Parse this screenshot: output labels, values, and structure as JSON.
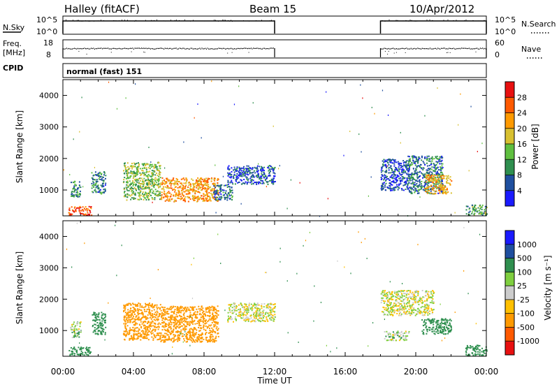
{
  "header": {
    "station": "Halley (fitACF)",
    "beam": "Beam 15",
    "date": "10/Apr/2012"
  },
  "left_labels": {
    "nsky": "N.Sky",
    "freq": "Freq.",
    "freq_unit": "[MHz]",
    "cpid": "CPID"
  },
  "right_labels": {
    "nsearch": "N.Search",
    "nave": "Nave"
  },
  "cpid_text": "normal (fast) 151",
  "colors": {
    "nsky_line": "#000000",
    "power_scale": [
      "#1a1aff",
      "#1f4f9f",
      "#2f8f4f",
      "#5fbf3f",
      "#d8c030",
      "#ff9a00",
      "#ff5a00",
      "#e81010"
    ],
    "velocity_scale": [
      "#e81010",
      "#ff5a00",
      "#ff9a00",
      "#ffc000",
      "#cccccc",
      "#7fcf3f",
      "#2f8f4f",
      "#1f4f9f",
      "#1a1aff"
    ]
  },
  "chart_data": [
    {
      "type": "line",
      "name": "noise-panel",
      "ylabel_left": "N.Sky",
      "ylabel_right": "N.Search",
      "yticks_left": [
        "10^5",
        "10^0"
      ],
      "yticks_right": [
        "10^5",
        "10^0"
      ],
      "segments_utc_hours": [
        [
          0.0,
          12.0
        ],
        [
          18.0,
          24.0
        ]
      ]
    },
    {
      "type": "scatter",
      "name": "frequency-panel",
      "ylabel_left": "Freq. [MHz]",
      "ylabel_right": "Nave",
      "yticks_left": [
        "18",
        "8"
      ],
      "yticks_right": [
        "60",
        "0"
      ],
      "segments_utc_hours": [
        [
          0.0,
          12.0
        ],
        [
          18.0,
          24.0
        ]
      ]
    },
    {
      "type": "heatmap",
      "name": "power-panel",
      "xlabel": "",
      "ylabel": "Slant Range [km]",
      "xlim": [
        0,
        24
      ],
      "ylim": [
        180,
        4500
      ],
      "yticks": [
        1000,
        2000,
        3000,
        4000
      ],
      "colorbar_label": "Power [dB]",
      "colorbar_ticks": [
        4,
        8,
        12,
        16,
        20,
        24,
        28
      ],
      "blobs": [
        {
          "t0": 0.3,
          "t1": 1.6,
          "r0": 220,
          "r1": 500,
          "v": 27
        },
        {
          "t0": 0.4,
          "t1": 1.0,
          "r0": 800,
          "r1": 1300,
          "v": 10
        },
        {
          "t0": 1.6,
          "t1": 2.4,
          "r0": 900,
          "r1": 1600,
          "v": 9
        },
        {
          "t0": 3.4,
          "t1": 5.5,
          "r0": 700,
          "r1": 1900,
          "v": 14
        },
        {
          "t0": 5.5,
          "t1": 8.8,
          "r0": 650,
          "r1": 1400,
          "v": 22
        },
        {
          "t0": 8.5,
          "t1": 9.6,
          "r0": 700,
          "r1": 1200,
          "v": 8
        },
        {
          "t0": 9.3,
          "t1": 12.0,
          "r0": 1200,
          "r1": 1800,
          "v": 6
        },
        {
          "t0": 18.0,
          "t1": 19.6,
          "r0": 1000,
          "r1": 2000,
          "v": 5
        },
        {
          "t0": 19.5,
          "t1": 21.5,
          "r0": 900,
          "r1": 2100,
          "v": 8
        },
        {
          "t0": 20.5,
          "t1": 22.0,
          "r0": 900,
          "r1": 1500,
          "v": 20
        },
        {
          "t0": 22.8,
          "t1": 24.0,
          "r0": 220,
          "r1": 550,
          "v": 12
        }
      ]
    },
    {
      "type": "heatmap",
      "name": "velocity-panel",
      "xlabel": "Time UT",
      "ylabel": "Slant Range [km]",
      "xlim": [
        0,
        24
      ],
      "ylim": [
        180,
        4500
      ],
      "yticks": [
        1000,
        2000,
        3000,
        4000
      ],
      "xticks": [
        "00:00",
        "04:00",
        "08:00",
        "12:00",
        "16:00",
        "20:00",
        "00:00"
      ],
      "colorbar_label": "Velocity [m s⁻¹]",
      "colorbar_ticks": [
        "1000",
        "500",
        "100",
        "25",
        "-25",
        "-100",
        "-500",
        "-1000"
      ],
      "blobs": [
        {
          "t0": 0.3,
          "t1": 1.6,
          "r0": 220,
          "r1": 500,
          "v": 400
        },
        {
          "t0": 0.4,
          "t1": 1.0,
          "r0": 800,
          "r1": 1300,
          "v": 60
        },
        {
          "t0": 1.6,
          "t1": 2.4,
          "r0": 900,
          "r1": 1600,
          "v": 400
        },
        {
          "t0": 3.4,
          "t1": 5.5,
          "r0": 700,
          "r1": 1900,
          "v": -200
        },
        {
          "t0": 5.5,
          "t1": 8.8,
          "r0": 650,
          "r1": 1800,
          "v": -300
        },
        {
          "t0": 9.3,
          "t1": 12.0,
          "r0": 1300,
          "r1": 1900,
          "v": 0
        },
        {
          "t0": 18.0,
          "t1": 21.0,
          "r0": 1500,
          "r1": 2300,
          "v": 0
        },
        {
          "t0": 20.3,
          "t1": 22.0,
          "r0": 900,
          "r1": 1400,
          "v": 200
        },
        {
          "t0": 18.2,
          "t1": 19.6,
          "r0": 700,
          "r1": 1000,
          "v": 60
        },
        {
          "t0": 22.8,
          "t1": 24.0,
          "r0": 220,
          "r1": 550,
          "v": 400
        }
      ]
    }
  ]
}
